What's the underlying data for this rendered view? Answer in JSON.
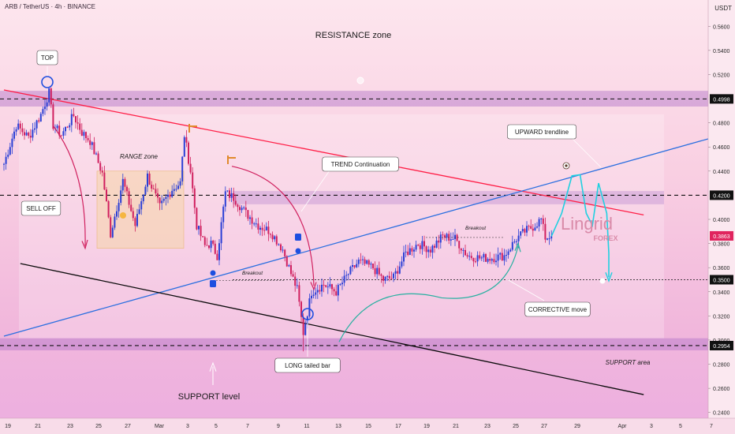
{
  "header": {
    "symbol_title": "ARB / TetherUS · 4h · BINANCE",
    "currency": "USDT"
  },
  "colors": {
    "up": "#2a3fd6",
    "down": "#d0205f",
    "resistance_line": "#ff1e46",
    "trend_line": "#2b6fe0",
    "support_line": "#0a0a0a",
    "projection": "#1fd0e0",
    "curve": "#27b0a0",
    "marker": "#1e4fe0",
    "zone": "#b070c8"
  },
  "chart_data": {
    "type": "candlestick",
    "symbol": "ARB / TetherUS",
    "timeframe": "4h",
    "exchange": "BINANCE",
    "ylim": [
      0.23,
      0.57
    ],
    "y_ticks": [
      "0.5600",
      "0.5400",
      "0.5200",
      "0.4800",
      "0.4600",
      "0.4400",
      "0.4000",
      "0.3800",
      "0.3600",
      "0.3400",
      "0.3200",
      "0.3000",
      "0.2800",
      "0.2600",
      "0.2400"
    ],
    "x_ticks": [
      "19",
      "21",
      "23",
      "25",
      "27",
      "Mar",
      "3",
      "5",
      "7",
      "9",
      "11",
      "13",
      "15",
      "17",
      "19",
      "21",
      "23",
      "25",
      "27",
      "29",
      "Apr",
      "3",
      "5",
      "7"
    ],
    "price_tags": [
      {
        "value": "0.4998",
        "style": "dark"
      },
      {
        "value": "0.4200",
        "style": "dark"
      },
      {
        "value": "0.3863",
        "style": "red"
      },
      {
        "value": "0.3500",
        "style": "dark"
      },
      {
        "value": "0.2954",
        "style": "dark"
      }
    ],
    "levels": [
      0.4998,
      0.42,
      0.35,
      0.2954
    ],
    "zones": [
      {
        "name": "resistance",
        "from": 0.4935,
        "to": 0.5065
      },
      {
        "name": "trend-continuation",
        "from": 0.4125,
        "to": 0.4235
      },
      {
        "name": "support",
        "from": 0.2915,
        "to": 0.3015
      }
    ],
    "candle_anchors": [
      {
        "t": 0,
        "p": 0.446
      },
      {
        "t": 6,
        "p": 0.478
      },
      {
        "t": 12,
        "p": 0.468
      },
      {
        "t": 18,
        "p": 0.487
      },
      {
        "t": 22,
        "p": 0.505
      },
      {
        "t": 24,
        "p": 0.478
      },
      {
        "t": 28,
        "p": 0.47
      },
      {
        "t": 34,
        "p": 0.486
      },
      {
        "t": 38,
        "p": 0.472
      },
      {
        "t": 42,
        "p": 0.465
      },
      {
        "t": 48,
        "p": 0.438
      },
      {
        "t": 52,
        "p": 0.388
      },
      {
        "t": 58,
        "p": 0.432
      },
      {
        "t": 64,
        "p": 0.395
      },
      {
        "t": 70,
        "p": 0.436
      },
      {
        "t": 76,
        "p": 0.41
      },
      {
        "t": 82,
        "p": 0.425
      },
      {
        "t": 86,
        "p": 0.43
      },
      {
        "t": 88,
        "p": 0.47
      },
      {
        "t": 91,
        "p": 0.44
      },
      {
        "t": 94,
        "p": 0.395
      },
      {
        "t": 98,
        "p": 0.378
      },
      {
        "t": 101,
        "p": 0.38
      },
      {
        "t": 104,
        "p": 0.37
      },
      {
        "t": 108,
        "p": 0.422
      },
      {
        "t": 112,
        "p": 0.418
      },
      {
        "t": 118,
        "p": 0.405
      },
      {
        "t": 124,
        "p": 0.395
      },
      {
        "t": 130,
        "p": 0.39
      },
      {
        "t": 136,
        "p": 0.375
      },
      {
        "t": 140,
        "p": 0.355
      },
      {
        "t": 143,
        "p": 0.342
      },
      {
        "t": 146,
        "p": 0.306
      },
      {
        "t": 150,
        "p": 0.34
      },
      {
        "t": 156,
        "p": 0.346
      },
      {
        "t": 162,
        "p": 0.34
      },
      {
        "t": 168,
        "p": 0.355
      },
      {
        "t": 173,
        "p": 0.365
      },
      {
        "t": 180,
        "p": 0.36
      },
      {
        "t": 185,
        "p": 0.35
      },
      {
        "t": 190,
        "p": 0.352
      },
      {
        "t": 196,
        "p": 0.372
      },
      {
        "t": 202,
        "p": 0.38
      },
      {
        "t": 208,
        "p": 0.375
      },
      {
        "t": 214,
        "p": 0.386
      },
      {
        "t": 220,
        "p": 0.384
      },
      {
        "t": 226,
        "p": 0.37
      },
      {
        "t": 232,
        "p": 0.368
      },
      {
        "t": 238,
        "p": 0.368
      },
      {
        "t": 244,
        "p": 0.37
      },
      {
        "t": 250,
        "p": 0.384
      },
      {
        "t": 254,
        "p": 0.39
      },
      {
        "t": 258,
        "p": 0.394
      },
      {
        "t": 262,
        "p": 0.4
      },
      {
        "t": 264,
        "p": 0.385
      },
      {
        "t": 267,
        "p": 0.386
      }
    ],
    "trendlines": [
      {
        "name": "resistance-trendline",
        "from": {
          "t": 0,
          "p": 0.5072
        },
        "to": {
          "t": 312,
          "p": 0.4037
        }
      },
      {
        "name": "upward-trendline",
        "from": {
          "t": 0,
          "p": 0.3032
        },
        "to": {
          "t": 345,
          "p": 0.4667
        }
      },
      {
        "name": "support-trendline",
        "from": {
          "t": 8,
          "p": 0.3634
        },
        "to": {
          "t": 312,
          "p": 0.2548
        }
      }
    ],
    "annotations": [
      {
        "text": "TOP",
        "kind": "label"
      },
      {
        "text": "RESISTANCE zone",
        "kind": "heading"
      },
      {
        "text": "SELL OFF",
        "kind": "label"
      },
      {
        "text": "RANGE zone",
        "kind": "italic"
      },
      {
        "text": "TREND Continuation",
        "kind": "label"
      },
      {
        "text": "UPWARD trendline",
        "kind": "label"
      },
      {
        "text": "Breakout",
        "kind": "small"
      },
      {
        "text": "Breakout",
        "kind": "small"
      },
      {
        "text": "CORRECTIVE move",
        "kind": "label"
      },
      {
        "text": "LONG tailed bar",
        "kind": "label"
      },
      {
        "text": "SUPPORT level",
        "kind": "heading"
      },
      {
        "text": "SUPPORT area",
        "kind": "italic"
      }
    ],
    "watermark": "Lingrid FOREX"
  }
}
